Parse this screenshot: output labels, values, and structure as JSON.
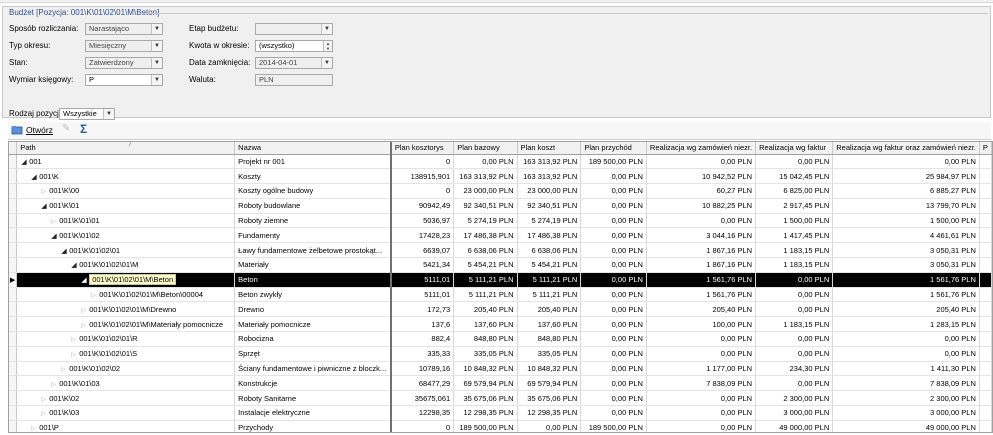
{
  "params": {
    "title": "Budżet [Pozycja: 001\\K\\01\\02\\01\\M\\Beton]",
    "sposob_label": "Sposób rozliczania:",
    "sposob_value": "Narastająco",
    "typ_label": "Typ okresu:",
    "typ_value": "Miesięczny",
    "stan_label": "Stan:",
    "stan_value": "Zatwierdzony",
    "wymiar_label": "Wymiar księgowy:",
    "wymiar_value": "P",
    "etap_label": "Etap budżetu:",
    "etap_value": "",
    "kwota_label": "Kwota w okresie:",
    "kwota_value": "(wszystko)",
    "data_label": "Data zamknięcia:",
    "data_value": "2014-04-01",
    "waluta_label": "Waluta:",
    "waluta_value": "PLN",
    "rodzaj_label": "Rodzaj pozycji:",
    "rodzaj_value": "Wszystkie"
  },
  "toolbar": {
    "otworz_label": "Otwórz"
  },
  "grid": {
    "columns": [
      "Path",
      "Nazwa",
      "Plan kosztorys",
      "Plan bazowy",
      "Plan koszt",
      "Plan przychód",
      "Realizacja wg zamówień niezr.",
      "Realizacja wg faktur",
      "Realizacja wg faktur oraz zamówień niezr.",
      "P"
    ],
    "rows": [
      {
        "path": "001",
        "nazwa": "Projekt nr 001",
        "kosztorys": "0",
        "bazowy": "0,00 PLN",
        "koszt": "163 313,92 PLN",
        "przychod": "189 500,00 PLN",
        "zam": "0,00 PLN",
        "fakt": "0,00 PLN",
        "faktzam": "0,00 PLN"
      },
      {
        "path": "001\\K",
        "nazwa": "Koszty",
        "kosztorys": "138915,901",
        "bazowy": "163 313,92 PLN",
        "koszt": "163 313,92 PLN",
        "przychod": "0,00 PLN",
        "zam": "10 942,52 PLN",
        "fakt": "15 042,45 PLN",
        "faktzam": "25 984,97 PLN"
      },
      {
        "path": "001\\K\\00",
        "nazwa": "Koszty ogólne budowy",
        "kosztorys": "0",
        "bazowy": "23 000,00 PLN",
        "koszt": "23 000,00 PLN",
        "przychod": "0,00 PLN",
        "zam": "60,27 PLN",
        "fakt": "6 825,00 PLN",
        "faktzam": "6 885,27 PLN"
      },
      {
        "path": "001\\K\\01",
        "nazwa": "Roboty budowlane",
        "kosztorys": "90942,49",
        "bazowy": "92 340,51 PLN",
        "koszt": "92 340,51 PLN",
        "przychod": "0,00 PLN",
        "zam": "10 882,25 PLN",
        "fakt": "2 917,45 PLN",
        "faktzam": "13 799,70 PLN"
      },
      {
        "path": "001\\K\\01\\01",
        "nazwa": "Roboty ziemne",
        "kosztorys": "5036,97",
        "bazowy": "5 274,19 PLN",
        "koszt": "5 274,19 PLN",
        "przychod": "0,00 PLN",
        "zam": "0,00 PLN",
        "fakt": "1 500,00 PLN",
        "faktzam": "1 500,00 PLN"
      },
      {
        "path": "001\\K\\01\\02",
        "nazwa": "Fundamenty",
        "kosztorys": "17428,23",
        "bazowy": "17 486,38 PLN",
        "koszt": "17 486,38 PLN",
        "przychod": "0,00 PLN",
        "zam": "3 044,16 PLN",
        "fakt": "1 417,45 PLN",
        "faktzam": "4 461,61 PLN"
      },
      {
        "path": "001\\K\\01\\02\\01",
        "nazwa": "Ławy fundamentowe żelbetowe prostokąt...",
        "kosztorys": "6639,07",
        "bazowy": "6 638,06 PLN",
        "koszt": "6 638,06 PLN",
        "przychod": "0,00 PLN",
        "zam": "1 867,16 PLN",
        "fakt": "1 183,15 PLN",
        "faktzam": "3 050,31 PLN"
      },
      {
        "path": "001\\K\\01\\02\\01\\M",
        "nazwa": "Materiały",
        "kosztorys": "5421,34",
        "bazowy": "5 454,21 PLN",
        "koszt": "5 454,21 PLN",
        "przychod": "0,00 PLN",
        "zam": "1 867,16 PLN",
        "fakt": "1 183,15 PLN",
        "faktzam": "3 050,31 PLN"
      },
      {
        "path": "001\\K\\01\\02\\01\\M\\Beton",
        "nazwa": "Beton",
        "kosztorys": "5111,01",
        "bazowy": "5 111,21 PLN",
        "koszt": "5 111,21 PLN",
        "przychod": "0,00 PLN",
        "zam": "1 561,76 PLN",
        "fakt": "0,00 PLN",
        "faktzam": "1 561,76 PLN"
      },
      {
        "path": "001\\K\\01\\02\\01\\M\\Beton\\00004",
        "nazwa": "Beton zwykły",
        "kosztorys": "5111,01",
        "bazowy": "5 111,21 PLN",
        "koszt": "5 111,21 PLN",
        "przychod": "0,00 PLN",
        "zam": "1 561,76 PLN",
        "fakt": "0,00 PLN",
        "faktzam": "1 561,76 PLN"
      },
      {
        "path": "001\\K\\01\\02\\01\\M\\Drewno",
        "nazwa": "Drewno",
        "kosztorys": "172,73",
        "bazowy": "205,40 PLN",
        "koszt": "205,40 PLN",
        "przychod": "0,00 PLN",
        "zam": "205,40 PLN",
        "fakt": "0,00 PLN",
        "faktzam": "205,40 PLN"
      },
      {
        "path": "001\\K\\01\\02\\01\\M\\Materiały pomocnicze",
        "nazwa": "Materiały pomocnicze",
        "kosztorys": "137,6",
        "bazowy": "137,60 PLN",
        "koszt": "137,60 PLN",
        "przychod": "0,00 PLN",
        "zam": "100,00 PLN",
        "fakt": "1 183,15 PLN",
        "faktzam": "1 283,15 PLN"
      },
      {
        "path": "001\\K\\01\\02\\01\\R",
        "nazwa": "Robocizna",
        "kosztorys": "882,4",
        "bazowy": "848,80 PLN",
        "koszt": "848,80 PLN",
        "przychod": "0,00 PLN",
        "zam": "0,00 PLN",
        "fakt": "0,00 PLN",
        "faktzam": "0,00 PLN"
      },
      {
        "path": "001\\K\\01\\02\\01\\S",
        "nazwa": "Sprzęt",
        "kosztorys": "335,33",
        "bazowy": "335,05 PLN",
        "koszt": "335,05 PLN",
        "przychod": "0,00 PLN",
        "zam": "0,00 PLN",
        "fakt": "0,00 PLN",
        "faktzam": "0,00 PLN"
      },
      {
        "path": "001\\K\\01\\02\\02",
        "nazwa": "Ściany fundamentowe i piwniczne z bloczk...",
        "kosztorys": "10789,16",
        "bazowy": "10 848,32 PLN",
        "koszt": "10 848,32 PLN",
        "przychod": "0,00 PLN",
        "zam": "1 177,00 PLN",
        "fakt": "234,30 PLN",
        "faktzam": "1 411,30 PLN"
      },
      {
        "path": "001\\K\\01\\03",
        "nazwa": "Konstrukcje",
        "kosztorys": "68477,29",
        "bazowy": "69 579,94 PLN",
        "koszt": "69 579,94 PLN",
        "przychod": "0,00 PLN",
        "zam": "7 838,09 PLN",
        "fakt": "0,00 PLN",
        "faktzam": "7 838,09 PLN"
      },
      {
        "path": "001\\K\\02",
        "nazwa": "Roboty Sanitarne",
        "kosztorys": "35675,061",
        "bazowy": "35 675,06 PLN",
        "koszt": "35 675,06 PLN",
        "przychod": "0,00 PLN",
        "zam": "0,00 PLN",
        "fakt": "2 300,00 PLN",
        "faktzam": "2 300,00 PLN"
      },
      {
        "path": "001\\K\\03",
        "nazwa": "Instalacje elektryczne",
        "kosztorys": "12298,35",
        "bazowy": "12 298,35 PLN",
        "koszt": "12 298,35 PLN",
        "przychod": "0,00 PLN",
        "zam": "0,00 PLN",
        "fakt": "3 000,00 PLN",
        "faktzam": "3 000,00 PLN"
      },
      {
        "path": "001\\P",
        "nazwa": "Przychody",
        "kosztorys": "0",
        "bazowy": "189 500,00 PLN",
        "koszt": "0,00 PLN",
        "przychod": "189 500,00 PLN",
        "zam": "0,00 PLN",
        "fakt": "49 000,00 PLN",
        "faktzam": "49 000,00 PLN"
      }
    ]
  }
}
